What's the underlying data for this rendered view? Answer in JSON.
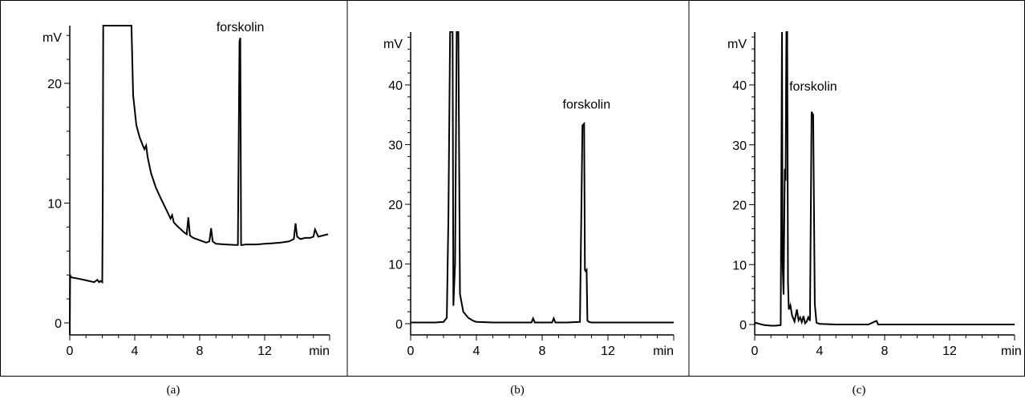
{
  "chart_data": [
    {
      "type": "line",
      "panel_label": "(a)",
      "xlabel": "min",
      "ylabel": "mV",
      "xlim": [
        0,
        16
      ],
      "ylim": [
        -1,
        25
      ],
      "xticks": [
        0,
        4,
        8,
        12
      ],
      "yticks": [
        0,
        10,
        20
      ],
      "tick_labels_x": [
        "0",
        "4",
        "8",
        "12"
      ],
      "tick_labels_y": [
        "0",
        "10",
        "20"
      ],
      "annotation": {
        "text": "forskolin",
        "x": 10.5,
        "y": 23.8
      },
      "series": [
        {
          "x": [
            0,
            0.02,
            0.05,
            0.1,
            0.5,
            1.0,
            1.5,
            1.7,
            1.8,
            1.9,
            2.0,
            2.03,
            2.06,
            2.15,
            2.2,
            3.75,
            3.8,
            3.9,
            4.1,
            4.3,
            4.5,
            4.6,
            4.7,
            4.8,
            5.0,
            5.3,
            5.6,
            6.0,
            6.2,
            6.3,
            6.4,
            6.6,
            7.0,
            7.2,
            7.3,
            7.4,
            7.6,
            8.0,
            8.4,
            8.6,
            8.7,
            8.8,
            9.0,
            9.6,
            10.2,
            10.35,
            10.45,
            10.5,
            10.55,
            10.65,
            10.8,
            11.0,
            11.5,
            12.0,
            12.5,
            13.0,
            13.5,
            13.8,
            13.9,
            14.0,
            14.2,
            14.5,
            14.8,
            15.0,
            15.1,
            15.3,
            15.6,
            15.9
          ],
          "y": [
            -1,
            4.0,
            3.9,
            3.8,
            3.7,
            3.55,
            3.4,
            3.6,
            3.4,
            3.5,
            3.4,
            10,
            30,
            30,
            30,
            30,
            30,
            19,
            16.5,
            15.5,
            14.8,
            14.5,
            14.8,
            13.8,
            12.5,
            11.3,
            10.4,
            9.3,
            8.7,
            9.0,
            8.4,
            8.1,
            7.6,
            7.4,
            8.8,
            7.3,
            7.1,
            6.9,
            6.7,
            6.8,
            7.9,
            6.8,
            6.6,
            6.55,
            6.5,
            6.5,
            23.5,
            23.8,
            6.5,
            6.5,
            6.55,
            6.55,
            6.55,
            6.6,
            6.65,
            6.7,
            6.8,
            7.0,
            8.3,
            7.2,
            7.0,
            7.1,
            7.1,
            7.2,
            7.8,
            7.2,
            7.3,
            7.4
          ]
        }
      ]
    },
    {
      "type": "line",
      "panel_label": "(b)",
      "xlabel": "min",
      "ylabel": "mV",
      "xlim": [
        0,
        16
      ],
      "ylim": [
        -2,
        50
      ],
      "xticks": [
        0,
        4,
        8,
        12
      ],
      "yticks": [
        0,
        10,
        20,
        30,
        40
      ],
      "tick_labels_x": [
        "0",
        "4",
        "8",
        "12"
      ],
      "tick_labels_y": [
        "0",
        "10",
        "20",
        "30",
        "40"
      ],
      "annotation": {
        "text": "forskolin",
        "x": 10.7,
        "y": 35
      },
      "series": [
        {
          "x": [
            0,
            1.5,
            2.0,
            2.2,
            2.3,
            2.4,
            2.55,
            2.6,
            2.7,
            2.8,
            2.9,
            3.0,
            3.2,
            3.5,
            3.8,
            4.0,
            5.0,
            6.0,
            7.0,
            7.35,
            7.45,
            7.55,
            8.0,
            8.6,
            8.7,
            8.8,
            9.5,
            10.3,
            10.45,
            10.55,
            10.6,
            10.65,
            10.7,
            10.75,
            10.85,
            11.0,
            12.0,
            13.0,
            14.0,
            15.0,
            16.0
          ],
          "y": [
            0.2,
            0.2,
            0.3,
            1.0,
            18,
            52,
            52,
            3.0,
            10,
            52,
            52,
            5,
            2.0,
            1.0,
            0.5,
            0.3,
            0.2,
            0.2,
            0.2,
            0.2,
            0.9,
            0.2,
            0.2,
            0.2,
            0.9,
            0.2,
            0.2,
            0.3,
            33.2,
            33.5,
            9.0,
            8.8,
            9.0,
            0.5,
            0.3,
            0.2,
            0.2,
            0.2,
            0.2,
            0.2,
            0.2
          ]
        }
      ]
    },
    {
      "type": "line",
      "panel_label": "(c)",
      "xlabel": "min",
      "ylabel": "mV",
      "xlim": [
        0,
        16
      ],
      "ylim": [
        -2,
        50
      ],
      "xticks": [
        0,
        4,
        8,
        12
      ],
      "yticks": [
        0,
        10,
        20,
        30,
        40
      ],
      "tick_labels_x": [
        "0",
        "4",
        "8",
        "12"
      ],
      "tick_labels_y": [
        "0",
        "10",
        "20",
        "30",
        "40"
      ],
      "annotation": {
        "text": "forskolin",
        "x": 3.6,
        "y": 38
      },
      "series": [
        {
          "x": [
            0,
            0.05,
            0.3,
            0.6,
            1.0,
            1.3,
            1.6,
            1.68,
            1.72,
            1.78,
            1.85,
            1.9,
            1.95,
            2.0,
            2.05,
            2.1,
            2.2,
            2.3,
            2.45,
            2.6,
            2.7,
            2.8,
            2.9,
            3.0,
            3.1,
            3.2,
            3.3,
            3.4,
            3.5,
            3.6,
            3.7,
            3.8,
            4.0,
            5.0,
            6.0,
            7.0,
            7.4,
            7.5,
            7.6,
            8.0,
            10.0,
            12.0,
            14.0,
            16.0
          ],
          "y": [
            0,
            0.3,
            0.1,
            -0.1,
            -0.2,
            -0.2,
            -0.1,
            50,
            10,
            5,
            26,
            24,
            50,
            50,
            7,
            2.5,
            3.2,
            1.5,
            0.5,
            2.5,
            0.7,
            1.2,
            0.4,
            1.4,
            0.2,
            0.5,
            1.2,
            0.6,
            35.5,
            35,
            3.5,
            0.3,
            0.1,
            0,
            0,
            0,
            0.5,
            0.6,
            0,
            0,
            0,
            0,
            0,
            0
          ]
        }
      ]
    }
  ]
}
